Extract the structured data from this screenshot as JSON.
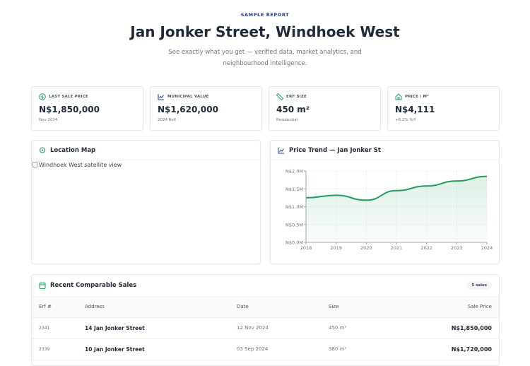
{
  "header": {
    "eyebrow": "SAMPLE REPORT",
    "title": "Jan Jonker Street, Windhoek West",
    "subtitle": "See exactly what you get — verified data, market analytics, and neighbourhood intelligence."
  },
  "stats": [
    {
      "label": "LAST SALE PRICE",
      "value": "N$1,850,000",
      "note": "Nov 2024",
      "icon": "dollar-circle-icon"
    },
    {
      "label": "MUNICIPAL VALUE",
      "value": "N$1,620,000",
      "note": "2024 Roll",
      "icon": "chart-line-icon"
    },
    {
      "label": "ERF SIZE",
      "value": "450 m²",
      "note": "Residential",
      "icon": "ruler-icon"
    },
    {
      "label": "PRICE / M²",
      "value": "N$4,111",
      "note": "+8.2% YoY",
      "icon": "home-icon"
    }
  ],
  "map": {
    "title": "Location Map",
    "alt": "Windhoek West satellite view"
  },
  "chart_data": {
    "type": "area",
    "title": "Price Trend — Jan Jonker St",
    "x": [
      "2018",
      "2019",
      "2020",
      "2021",
      "2022",
      "2023",
      "2024"
    ],
    "values": [
      1.25,
      1.32,
      1.18,
      1.45,
      1.58,
      1.72,
      1.85
    ],
    "yticks": [
      "N$0.0M",
      "N$0.5M",
      "N$1.0M",
      "N$1.5M",
      "N$2.0M"
    ],
    "ylim": [
      0,
      2.0
    ],
    "unit": "N$ millions",
    "color": "#1f9d5c",
    "grid": true
  },
  "sales": {
    "title": "Recent Comparable Sales",
    "badge": "5 sales",
    "columns": [
      "Erf #",
      "Address",
      "Date",
      "Size",
      "Sale Price"
    ],
    "rows": [
      [
        "2341",
        "14 Jan Jonker Street",
        "12 Nov 2024",
        "450 m²",
        "N$1,850,000"
      ],
      [
        "2339",
        "10 Jan Jonker Street",
        "03 Sep 2024",
        "380 m²",
        "N$1,720,000"
      ]
    ]
  }
}
